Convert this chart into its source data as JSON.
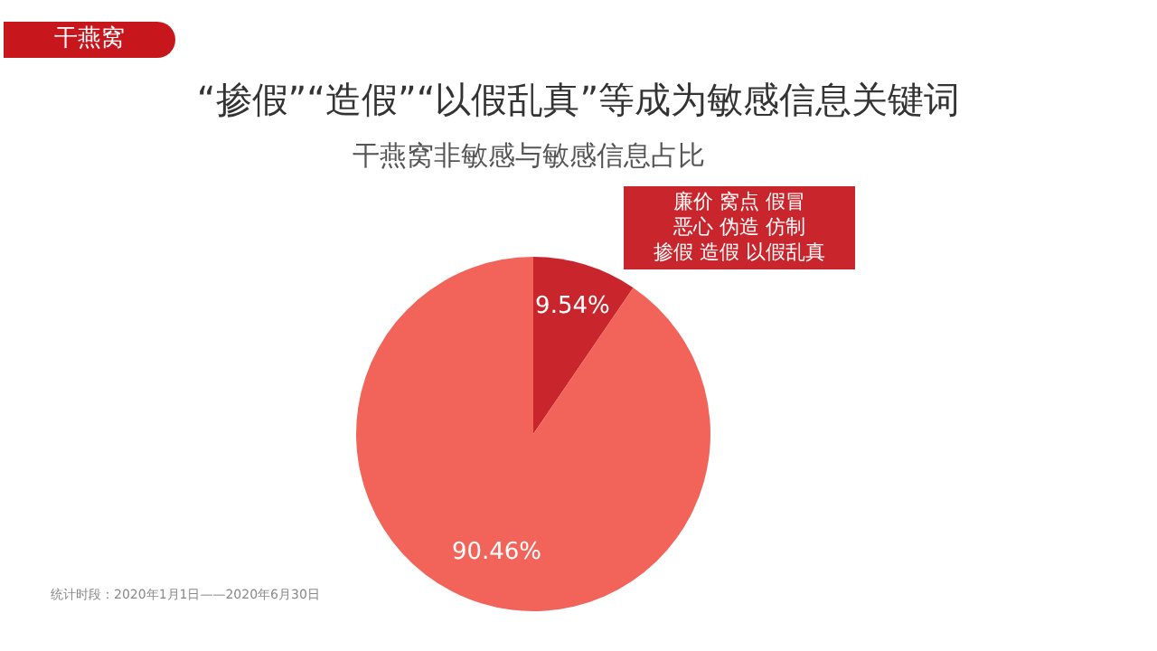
{
  "chart_data": {
    "type": "pie",
    "title": "“掺假”“造假”“以假乱真”等成为敏感信息关键词",
    "subtitle": "干燕窝非敏感与敏感信息占比",
    "categories": [
      null,
      null
    ],
    "values": [
      9.54,
      90.46
    ],
    "colors": [
      "#c8262c",
      "#f2645a"
    ],
    "value_labels": [
      "9.54%",
      "90.46%"
    ],
    "annotations": [
      "干燕窝",
      "廉价 窝点 假冒",
      "恶心 伪造 仿制",
      "掺假 造假 以假乱真",
      "统计时段：2020年1月1日——2020年6月30日"
    ]
  }
}
